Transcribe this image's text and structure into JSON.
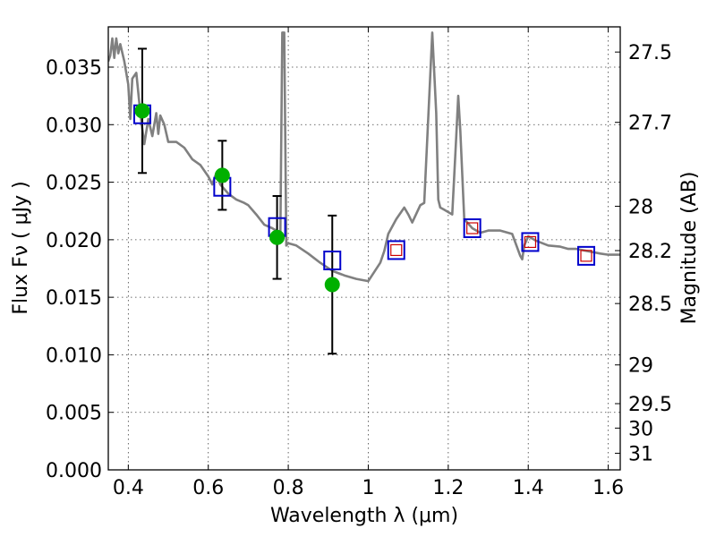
{
  "chart_data": {
    "type": "line",
    "title": "",
    "xlabel": "Wavelength  λ (μm)",
    "ylabel": "Flux  Fν  ( μJy )",
    "y2label": "Magnitude (AB)",
    "xlim": [
      0.35,
      1.63
    ],
    "ylim": [
      0.0,
      0.0385
    ],
    "grid": true,
    "x_ticks": [
      0.4,
      0.6,
      0.8,
      1.0,
      1.2,
      1.4,
      1.6
    ],
    "x_tick_labels": [
      "0.4",
      "0.6",
      "0.8",
      "1",
      "1.2",
      "1.4",
      "1.6"
    ],
    "y_ticks": [
      0.0,
      0.005,
      0.01,
      0.015,
      0.02,
      0.025,
      0.03,
      0.035
    ],
    "y_tick_labels": [
      "0.000",
      "0.005",
      "0.010",
      "0.015",
      "0.020",
      "0.025",
      "0.030",
      "0.035"
    ],
    "mag_ticks": [
      27.5,
      27.7,
      28,
      28.2,
      28.5,
      29,
      29.5,
      30,
      31
    ],
    "mag_tick_labels": [
      "27.5",
      "27.7",
      "28",
      "28.2",
      "28.5",
      "29",
      "29.5",
      "30",
      "31"
    ],
    "colors": {
      "sed": "#808080",
      "observed": "#00b000",
      "model_boxes": "#0000cc",
      "model_boxes_ir": "#cc0000",
      "errorbar": "#000000"
    },
    "series": [
      {
        "type": "line",
        "x": [
          0.35,
          0.355,
          0.36,
          0.365,
          0.37,
          0.375,
          0.38,
          0.39,
          0.4,
          0.405,
          0.41,
          0.42,
          0.43,
          0.44,
          0.45,
          0.46,
          0.47,
          0.475,
          0.48,
          0.49,
          0.5,
          0.52,
          0.54,
          0.56,
          0.58,
          0.59,
          0.6,
          0.61,
          0.62,
          0.63,
          0.65,
          0.67,
          0.69,
          0.7,
          0.72,
          0.74,
          0.76,
          0.77,
          0.78,
          0.785,
          0.79,
          0.795,
          0.8,
          0.82,
          0.85,
          0.88,
          0.91,
          0.94,
          0.97,
          1.0,
          1.03,
          1.04,
          1.05,
          1.07,
          1.09,
          1.1,
          1.11,
          1.13,
          1.14,
          1.16,
          1.17,
          1.175,
          1.18,
          1.19,
          1.21,
          1.22,
          1.225,
          1.23,
          1.24,
          1.26,
          1.28,
          1.3,
          1.33,
          1.36,
          1.38,
          1.385,
          1.39,
          1.4,
          1.42,
          1.45,
          1.48,
          1.5,
          1.52,
          1.55,
          1.58,
          1.6,
          1.63
        ],
        "y": [
          0.0355,
          0.036,
          0.0375,
          0.0358,
          0.0375,
          0.0362,
          0.037,
          0.0355,
          0.0335,
          0.0305,
          0.034,
          0.0345,
          0.031,
          0.0283,
          0.0305,
          0.029,
          0.031,
          0.0292,
          0.0308,
          0.03,
          0.0285,
          0.0285,
          0.028,
          0.027,
          0.0265,
          0.026,
          0.0255,
          0.0248,
          0.0258,
          0.0248,
          0.024,
          0.0235,
          0.0232,
          0.023,
          0.0222,
          0.0213,
          0.021,
          0.0208,
          0.02,
          0.038,
          0.038,
          0.0195,
          0.0197,
          0.0195,
          0.0188,
          0.018,
          0.0173,
          0.0169,
          0.0166,
          0.0164,
          0.018,
          0.019,
          0.0205,
          0.0218,
          0.0228,
          0.0222,
          0.0215,
          0.023,
          0.0232,
          0.038,
          0.031,
          0.0235,
          0.0228,
          0.0226,
          0.0222,
          0.029,
          0.0325,
          0.0295,
          0.0218,
          0.021,
          0.0206,
          0.0208,
          0.0208,
          0.0205,
          0.0186,
          0.0183,
          0.0195,
          0.0203,
          0.0199,
          0.0195,
          0.0194,
          0.0192,
          0.0192,
          0.019,
          0.0188,
          0.0187,
          0.0187
        ]
      },
      {
        "type": "scatter",
        "marker": "circle",
        "x": [
          0.435,
          0.635,
          0.772,
          0.91
        ],
        "y": [
          0.0312,
          0.0256,
          0.0202,
          0.0161
        ],
        "yerr": [
          0.0054,
          0.003,
          0.0036,
          0.006
        ]
      },
      {
        "type": "scatter",
        "marker": "square",
        "x": [
          0.435,
          0.635,
          0.772,
          0.91,
          1.07,
          1.26,
          1.405,
          1.545
        ],
        "y": [
          0.0309,
          0.0246,
          0.0211,
          0.0182,
          0.0191,
          0.021,
          0.0198,
          0.0186
        ]
      }
    ]
  }
}
